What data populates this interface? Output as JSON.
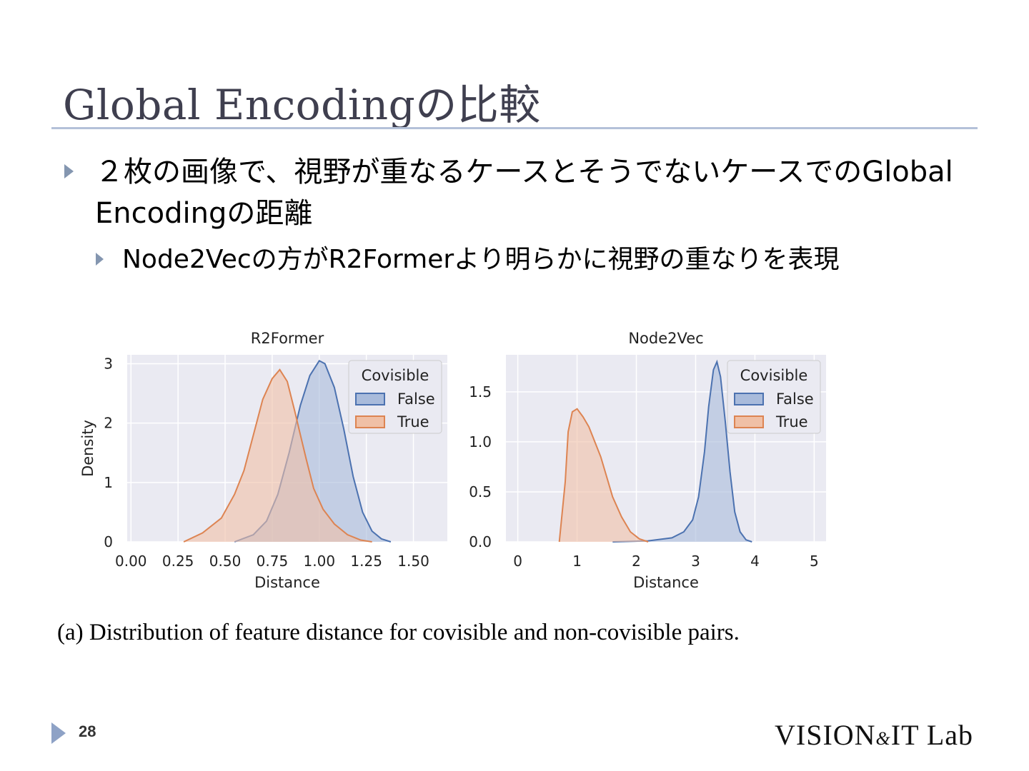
{
  "slide": {
    "title": "Global Encodingの比較",
    "bullets": [
      "２枚の画像で、視野が重なるケースとそうでないケースでのGlobal Encodingの距離"
    ],
    "sub_bullets": [
      "Node2Vecの方がR2Formerより明らかに視野の重なりを表現"
    ],
    "caption": "(a) Distribution of feature distance for covisible and non-covisible pairs.",
    "page_number": "28",
    "logo": {
      "main": "VISION",
      "amp": "&",
      "rest": "IT Lab"
    }
  },
  "colors": {
    "false_line": "#4c72b0",
    "false_fill": "#a9bbdb",
    "true_line": "#dd8452",
    "true_fill": "#f0c0a6",
    "plot_bg": "#eaeaf2",
    "grid": "#ffffff",
    "bullet": "#8496b0"
  },
  "chart_data": [
    {
      "type": "area",
      "title": "R2Former",
      "xlabel": "Distance",
      "ylabel": "Density",
      "xlim": [
        -0.02,
        1.68
      ],
      "ylim": [
        0,
        3.15
      ],
      "xticks": [
        "0.00",
        "0.25",
        "0.50",
        "0.75",
        "1.00",
        "1.25",
        "1.50"
      ],
      "xtick_values": [
        0,
        0.25,
        0.5,
        0.75,
        1.0,
        1.25,
        1.5
      ],
      "yticks": [
        "0",
        "1",
        "2",
        "3"
      ],
      "ytick_values": [
        0,
        1,
        2,
        3
      ],
      "grid": true,
      "legend": {
        "title": "Covisible",
        "placement": "top-right",
        "entries": [
          "False",
          "True"
        ]
      },
      "series": [
        {
          "name": "False",
          "x": [
            0.55,
            0.65,
            0.72,
            0.78,
            0.84,
            0.9,
            0.95,
            1.0,
            1.03,
            1.08,
            1.13,
            1.18,
            1.23,
            1.28,
            1.33,
            1.38
          ],
          "y": [
            0.0,
            0.12,
            0.35,
            0.8,
            1.5,
            2.3,
            2.8,
            3.05,
            3.0,
            2.6,
            1.9,
            1.1,
            0.5,
            0.18,
            0.05,
            0.0
          ]
        },
        {
          "name": "True",
          "x": [
            0.28,
            0.38,
            0.48,
            0.55,
            0.6,
            0.65,
            0.7,
            0.75,
            0.79,
            0.83,
            0.87,
            0.9,
            0.93,
            0.97,
            1.02,
            1.08,
            1.15,
            1.22,
            1.28
          ],
          "y": [
            0.0,
            0.15,
            0.4,
            0.8,
            1.2,
            1.8,
            2.4,
            2.75,
            2.9,
            2.7,
            2.2,
            1.8,
            1.4,
            0.9,
            0.55,
            0.3,
            0.12,
            0.03,
            0.0
          ]
        }
      ]
    },
    {
      "type": "area",
      "title": "Node2Vec",
      "xlabel": "Distance",
      "ylabel": "",
      "xlim": [
        -0.2,
        5.2
      ],
      "ylim": [
        0,
        1.87
      ],
      "xticks": [
        "0",
        "1",
        "2",
        "3",
        "4",
        "5"
      ],
      "xtick_values": [
        0,
        1,
        2,
        3,
        4,
        5
      ],
      "yticks": [
        "0.0",
        "0.5",
        "1.0",
        "1.5"
      ],
      "ytick_values": [
        0,
        0.5,
        1.0,
        1.5
      ],
      "grid": true,
      "legend": {
        "title": "Covisible",
        "placement": "top-right",
        "entries": [
          "False",
          "True"
        ]
      },
      "series": [
        {
          "name": "False",
          "x": [
            1.6,
            2.2,
            2.6,
            2.8,
            2.95,
            3.05,
            3.15,
            3.22,
            3.3,
            3.36,
            3.42,
            3.5,
            3.58,
            3.66,
            3.75,
            3.85,
            3.95
          ],
          "y": [
            0.0,
            0.01,
            0.04,
            0.1,
            0.22,
            0.45,
            0.9,
            1.35,
            1.72,
            1.8,
            1.65,
            1.2,
            0.7,
            0.3,
            0.1,
            0.02,
            0.0
          ]
        },
        {
          "name": "True",
          "x": [
            0.7,
            0.8,
            0.85,
            0.92,
            1.0,
            1.1,
            1.2,
            1.3,
            1.4,
            1.5,
            1.6,
            1.75,
            1.9,
            2.05,
            2.2
          ],
          "y": [
            0.0,
            0.6,
            1.1,
            1.3,
            1.33,
            1.25,
            1.15,
            1.0,
            0.85,
            0.65,
            0.45,
            0.25,
            0.1,
            0.03,
            0.0
          ]
        }
      ]
    }
  ]
}
